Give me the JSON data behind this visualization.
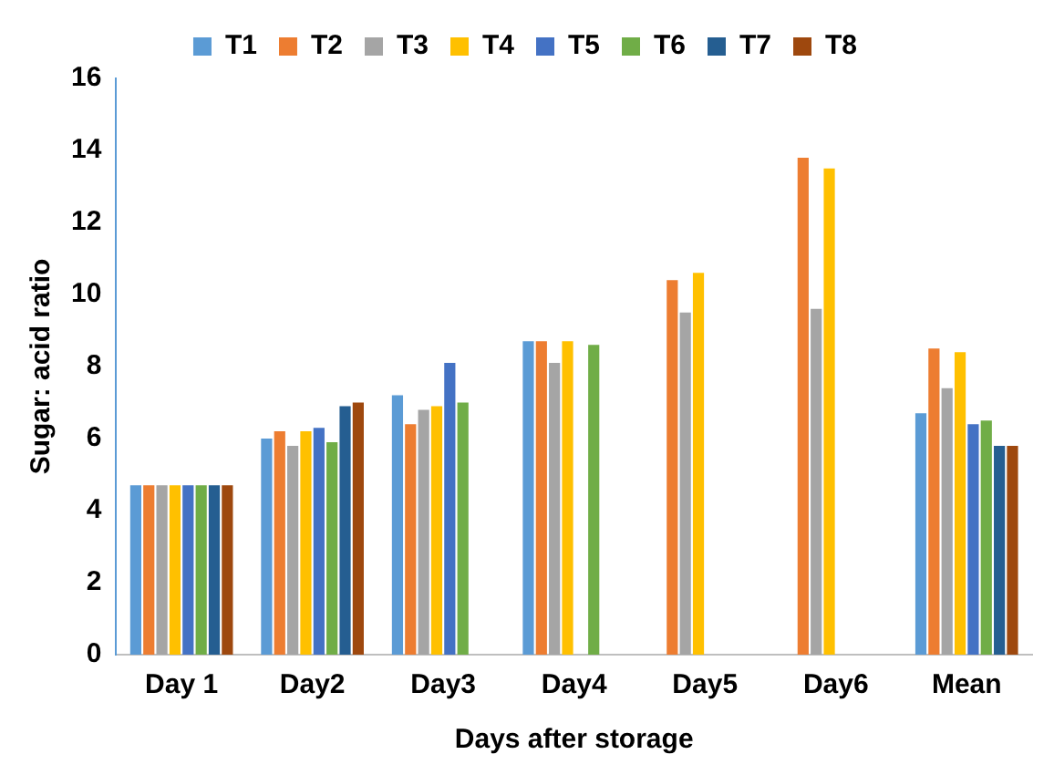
{
  "chart_data": {
    "type": "bar",
    "xlabel": "Days after storage",
    "ylabel": "Sugar: acid ratio",
    "categories": [
      "Day 1",
      "Day2",
      "Day3",
      "Day4",
      "Day5",
      "Day6",
      "Mean"
    ],
    "series": [
      {
        "name": "T1",
        "color": "#5b9bd5",
        "values": [
          4.7,
          6.0,
          7.2,
          8.7,
          null,
          null,
          6.7
        ]
      },
      {
        "name": "T2",
        "color": "#ed7d31",
        "values": [
          4.7,
          6.2,
          6.4,
          8.7,
          10.4,
          13.8,
          8.5
        ]
      },
      {
        "name": "T3",
        "color": "#a5a5a5",
        "values": [
          4.7,
          5.8,
          6.8,
          8.1,
          9.5,
          9.6,
          7.4
        ]
      },
      {
        "name": "T4",
        "color": "#ffc000",
        "values": [
          4.7,
          6.2,
          6.9,
          8.7,
          10.6,
          13.5,
          8.4
        ]
      },
      {
        "name": "T5",
        "color": "#4472c4",
        "values": [
          4.7,
          6.3,
          8.1,
          null,
          null,
          null,
          6.4
        ]
      },
      {
        "name": "T6",
        "color": "#70ad47",
        "values": [
          4.7,
          5.9,
          7.0,
          8.6,
          null,
          null,
          6.5
        ]
      },
      {
        "name": "T7",
        "color": "#255e91",
        "values": [
          4.7,
          6.9,
          null,
          null,
          null,
          null,
          5.8
        ]
      },
      {
        "name": "T8",
        "color": "#9e480e",
        "values": [
          4.7,
          7.0,
          null,
          null,
          null,
          null,
          5.8
        ]
      }
    ],
    "ylim": [
      0,
      16
    ],
    "yticks": [
      0,
      2,
      4,
      6,
      8,
      10,
      12,
      14,
      16
    ],
    "grid": false,
    "legend": "top"
  }
}
